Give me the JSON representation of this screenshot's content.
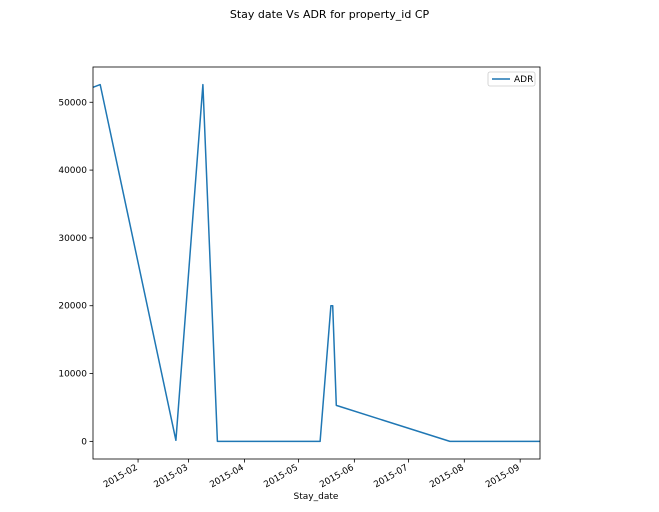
{
  "chart_data": {
    "type": "line",
    "title": "Stay date Vs ADR for property_id CP",
    "xlabel": "Stay_date",
    "ylabel": "",
    "x_axis_type": "date",
    "xlim": [
      "2015-01-07",
      "2015-09-12"
    ],
    "ylim": [
      -2600,
      55200
    ],
    "x_ticks": [
      "2015-02",
      "2015-03",
      "2015-04",
      "2015-05",
      "2015-06",
      "2015-07",
      "2015-08",
      "2015-09"
    ],
    "y_ticks": [
      0,
      10000,
      20000,
      30000,
      40000,
      50000
    ],
    "legend": {
      "placement": "top-right",
      "entries": [
        "ADR"
      ]
    },
    "grid": false,
    "series": [
      {
        "name": "ADR",
        "color": "#1f77b4",
        "x": [
          "2015-01-07",
          "2015-01-11",
          "2015-02-22",
          "2015-03-09",
          "2015-03-17",
          "2015-05-13",
          "2015-05-19",
          "2015-05-20",
          "2015-05-22",
          "2015-07-24",
          "2015-09-12"
        ],
        "values": [
          52200,
          52600,
          150,
          52600,
          0,
          0,
          20000,
          20000,
          5300,
          0,
          0
        ]
      }
    ]
  }
}
